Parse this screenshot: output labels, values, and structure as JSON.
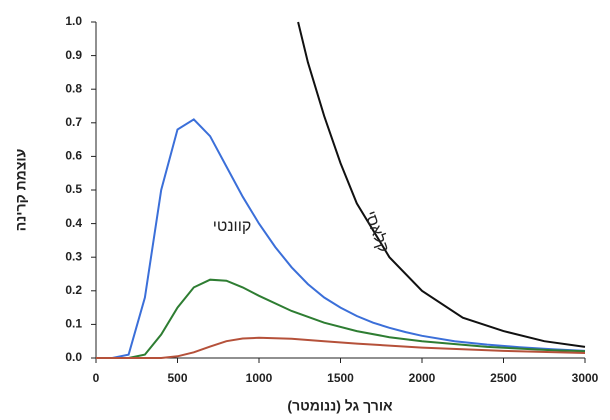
{
  "chart_data": {
    "type": "line",
    "x_label": "אורך גל (ננומטר)",
    "y_label": "עוצמת קרינה",
    "annotations": [
      "קוונטי",
      "קלאסי"
    ],
    "xlim": [
      0,
      3000
    ],
    "xticks": [
      0,
      500,
      1000,
      1500,
      2000,
      2500,
      3000
    ],
    "ylim": [
      0,
      1
    ],
    "yticks": [
      {
        "value": 0,
        "label": "0.0"
      },
      0.1,
      0.2,
      0.3,
      0.4,
      0.5,
      0.6,
      0.7,
      0.8,
      0.9,
      {
        "value": 1,
        "label": "1.0"
      }
    ],
    "series": [
      {
        "color": "#3b6fd9",
        "x": [
          0,
          100,
          200,
          300,
          400,
          500,
          600,
          700,
          800,
          900,
          1000,
          1100,
          1200,
          1300,
          1400,
          1500,
          1600,
          1700,
          1800,
          1900,
          2000,
          2200,
          2400,
          2600,
          2800,
          3000
        ],
        "values": [
          0,
          0,
          0.01,
          0.18,
          0.5,
          0.68,
          0.71,
          0.66,
          0.57,
          0.48,
          0.4,
          0.33,
          0.27,
          0.22,
          0.18,
          0.15,
          0.125,
          0.105,
          0.09,
          0.077,
          0.066,
          0.05,
          0.04,
          0.032,
          0.026,
          0.021
        ]
      },
      {
        "color": "#2e7d32",
        "x": [
          0,
          200,
          300,
          400,
          500,
          600,
          700,
          800,
          900,
          1000,
          1200,
          1400,
          1600,
          1800,
          2000,
          2400,
          2800,
          3000
        ],
        "values": [
          0,
          0,
          0.01,
          0.07,
          0.15,
          0.21,
          0.233,
          0.23,
          0.21,
          0.185,
          0.14,
          0.105,
          0.08,
          0.062,
          0.05,
          0.033,
          0.023,
          0.02
        ]
      },
      {
        "color": "#b5513a",
        "x": [
          0,
          400,
          500,
          600,
          700,
          800,
          900,
          1000,
          1200,
          1400,
          1600,
          2000,
          2500,
          3000
        ],
        "values": [
          0,
          0,
          0.005,
          0.017,
          0.034,
          0.05,
          0.058,
          0.06,
          0.057,
          0.05,
          0.043,
          0.031,
          0.021,
          0.015
        ]
      },
      {
        "color": "#111111",
        "x": [
          1240,
          1300,
          1400,
          1500,
          1600,
          1800,
          2000,
          2250,
          2500,
          2750,
          3000
        ],
        "values": [
          1,
          0.88,
          0.72,
          0.58,
          0.46,
          0.3,
          0.2,
          0.12,
          0.08,
          0.05,
          0.033
        ]
      }
    ]
  }
}
